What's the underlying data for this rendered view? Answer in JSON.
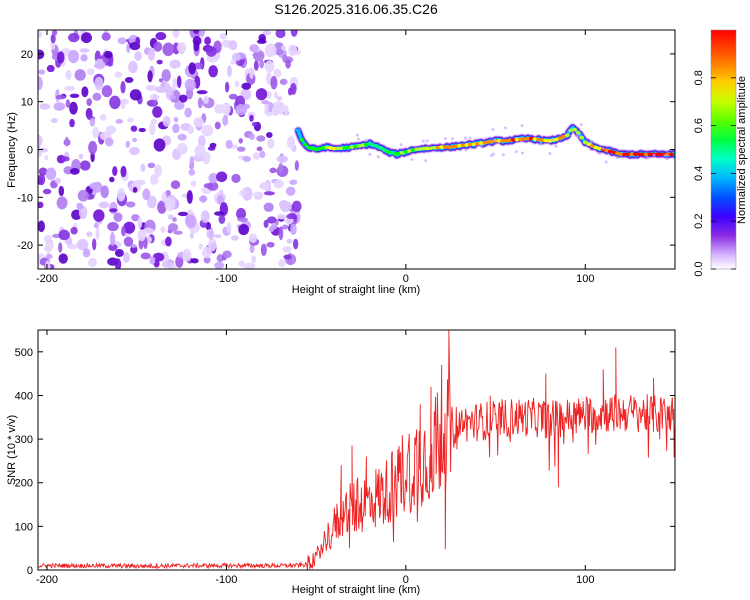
{
  "title": "S126.2025.316.06.35.C26",
  "chart_data": [
    {
      "type": "heatmap",
      "name": "spectrogram",
      "xlabel": "Height of straight line (km)",
      "ylabel": "Frequency (Hz)",
      "xlim": [
        -205,
        150
      ],
      "ylim": [
        -25,
        25
      ],
      "xticks": [
        -200,
        -100,
        0,
        100
      ],
      "xtick_labels": [
        "-200",
        "-100",
        "0",
        "100"
      ],
      "yticks": [
        -20,
        -10,
        0,
        10,
        20
      ],
      "ytick_labels": [
        "-20",
        "-10",
        "0",
        "10",
        "20"
      ],
      "noise_region_x": [
        -205,
        -60
      ],
      "signal_track": {
        "x": [
          -60,
          -58,
          -55,
          -50,
          -45,
          -40,
          -35,
          -30,
          -25,
          -20,
          -15,
          -10,
          -5,
          0,
          5,
          10,
          15,
          20,
          25,
          30,
          35,
          40,
          45,
          50,
          55,
          60,
          65,
          70,
          75,
          80,
          85,
          90,
          93,
          96,
          100,
          105,
          110,
          120,
          130,
          140,
          150
        ],
        "freq": [
          4,
          2,
          0.5,
          0,
          0.5,
          0.2,
          0.3,
          0.5,
          0.8,
          1.2,
          0.5,
          -0.5,
          -1,
          -0.5,
          0,
          0.2,
          0.3,
          0.5,
          0.5,
          0.8,
          1,
          1.2,
          1.5,
          1.8,
          1.8,
          2,
          2.2,
          2.3,
          2,
          1.8,
          2.2,
          3,
          4.5,
          3.5,
          1.5,
          0.5,
          0,
          -1,
          -1,
          -1,
          -1
        ],
        "amplitude": [
          0.4,
          0.55,
          0.6,
          0.6,
          0.7,
          0.75,
          0.7,
          0.65,
          0.7,
          0.6,
          0.5,
          0.55,
          0.6,
          0.65,
          0.7,
          0.75,
          0.8,
          0.85,
          0.9,
          0.85,
          0.85,
          0.9,
          0.9,
          0.9,
          0.85,
          0.9,
          0.95,
          0.9,
          0.85,
          0.8,
          0.85,
          0.8,
          0.7,
          0.65,
          0.7,
          0.8,
          0.9,
          0.95,
          0.98,
          0.98,
          0.98
        ]
      },
      "colorbar": {
        "label": "Normalized spectral amplitude",
        "range": [
          0,
          1
        ],
        "ticks": [
          0.0,
          0.2,
          0.4,
          0.6,
          0.8
        ],
        "tick_labels": [
          "0.0",
          "0.2",
          "0.4",
          "0.6",
          "0.8"
        ],
        "colormap": [
          "#ffffff",
          "#8a2be2",
          "#4b00ff",
          "#0000ff",
          "#00bfff",
          "#00ff7f",
          "#00ff00",
          "#adff2f",
          "#ffff00",
          "#ff8c00",
          "#ff0000"
        ]
      }
    },
    {
      "type": "line",
      "name": "snr",
      "xlabel": "Height of straight line (km)",
      "ylabel": "SNR (10 * v/v)",
      "xlim": [
        -205,
        150
      ],
      "ylim": [
        0,
        550
      ],
      "xticks": [
        -200,
        -100,
        0,
        100
      ],
      "xtick_labels": [
        "-200",
        "-100",
        "0",
        "100"
      ],
      "yticks": [
        0,
        100,
        200,
        300,
        400,
        500
      ],
      "ytick_labels": [
        "0",
        "100",
        "200",
        "300",
        "400",
        "500"
      ],
      "color": "#ee2222",
      "series": [
        {
          "name": "SNR",
          "x": [
            -205,
            -180,
            -150,
            -120,
            -90,
            -65,
            -55,
            -50,
            -45,
            -40,
            -35,
            -30,
            -25,
            -20,
            -15,
            -10,
            -5,
            0,
            5,
            10,
            15,
            18,
            20,
            22,
            25,
            30,
            40,
            50,
            60,
            70,
            80,
            90,
            100,
            110,
            120,
            130,
            140,
            150
          ],
          "y": [
            10,
            10,
            9,
            10,
            10,
            10,
            12,
            30,
            70,
            100,
            130,
            140,
            150,
            160,
            170,
            180,
            210,
            230,
            250,
            260,
            280,
            300,
            320,
            310,
            330,
            335,
            340,
            345,
            350,
            350,
            345,
            350,
            355,
            360,
            360,
            360,
            355,
            360
          ]
        }
      ],
      "spikes": [
        {
          "x": -36,
          "y": 240
        },
        {
          "x": -30,
          "y": 285
        },
        {
          "x": -22,
          "y": 260
        },
        {
          "x": 8,
          "y": 380
        },
        {
          "x": 14,
          "y": 420
        },
        {
          "x": 20,
          "y": 470
        },
        {
          "x": 24,
          "y": 550
        },
        {
          "x": 22,
          "y": 48
        },
        {
          "x": 47,
          "y": 400
        },
        {
          "x": 78,
          "y": 450
        },
        {
          "x": 85,
          "y": 190
        },
        {
          "x": 110,
          "y": 460
        },
        {
          "x": 117,
          "y": 510
        },
        {
          "x": 138,
          "y": 440
        }
      ]
    }
  ]
}
